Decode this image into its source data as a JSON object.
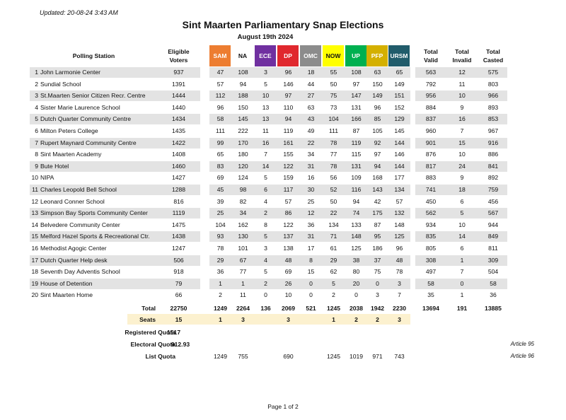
{
  "updated": "Updated: 20-08-24 3:43 AM",
  "title": "Sint Maarten Parliamentary Snap Elections",
  "subtitle": "August 19th 2024",
  "headers": {
    "station": "Polling Station",
    "eligible_line1": "Eligible",
    "eligible_line2": "Voters",
    "total_valid_line1": "Total",
    "total_valid_line2": "Valid",
    "total_invalid_line1": "Total",
    "total_invalid_line2": "Invalid",
    "total_casted_line1": "Total",
    "total_casted_line2": "Casted"
  },
  "parties": [
    {
      "name": "SAM",
      "color": "#ed7d31",
      "text": "#ffffff"
    },
    {
      "name": "NA",
      "color": "#ffffff",
      "text": "#111111"
    },
    {
      "name": "ECE",
      "color": "#7030a0",
      "text": "#ffffff"
    },
    {
      "name": "DP",
      "color": "#e0282e",
      "text": "#ffffff"
    },
    {
      "name": "OMC",
      "color": "#8c8c8c",
      "text": "#ffffff"
    },
    {
      "name": "NOW",
      "color": "#ffff00",
      "text": "#111111"
    },
    {
      "name": "UP",
      "color": "#00b050",
      "text": "#ffffff"
    },
    {
      "name": "PFP",
      "color": "#d4b000",
      "text": "#ffffff"
    },
    {
      "name": "URSM",
      "color": "#215c6b",
      "text": "#ffffff"
    }
  ],
  "rows": [
    {
      "n": "1",
      "station": "John Larmonie Center",
      "eligible": "937",
      "votes": [
        "47",
        "108",
        "3",
        "96",
        "18",
        "55",
        "108",
        "63",
        "65"
      ],
      "valid": "563",
      "invalid": "12",
      "casted": "575"
    },
    {
      "n": "2",
      "station": "Sundial School",
      "eligible": "1391",
      "votes": [
        "57",
        "94",
        "5",
        "146",
        "44",
        "50",
        "97",
        "150",
        "149"
      ],
      "valid": "792",
      "invalid": "11",
      "casted": "803"
    },
    {
      "n": "3",
      "station": "St.Maarten Senior Citizen Recr. Centre",
      "eligible": "1444",
      "votes": [
        "112",
        "188",
        "10",
        "97",
        "27",
        "75",
        "147",
        "149",
        "151"
      ],
      "valid": "956",
      "invalid": "10",
      "casted": "966"
    },
    {
      "n": "4",
      "station": "Sister Marie Laurence School",
      "eligible": "1440",
      "votes": [
        "96",
        "150",
        "13",
        "110",
        "63",
        "73",
        "131",
        "96",
        "152"
      ],
      "valid": "884",
      "invalid": "9",
      "casted": "893"
    },
    {
      "n": "5",
      "station": "Dutch Quarter Community Centre",
      "eligible": "1434",
      "votes": [
        "58",
        "145",
        "13",
        "94",
        "43",
        "104",
        "166",
        "85",
        "129"
      ],
      "valid": "837",
      "invalid": "16",
      "casted": "853"
    },
    {
      "n": "6",
      "station": "Milton Peters College",
      "eligible": "1435",
      "votes": [
        "111",
        "222",
        "11",
        "119",
        "49",
        "111",
        "87",
        "105",
        "145"
      ],
      "valid": "960",
      "invalid": "7",
      "casted": "967"
    },
    {
      "n": "7",
      "station": "Rupert Maynard Community Centre",
      "eligible": "1422",
      "votes": [
        "99",
        "170",
        "16",
        "161",
        "22",
        "78",
        "119",
        "92",
        "144"
      ],
      "valid": "901",
      "invalid": "15",
      "casted": "916"
    },
    {
      "n": "8",
      "station": "Sint Maarten Academy",
      "eligible": "1408",
      "votes": [
        "65",
        "180",
        "7",
        "155",
        "34",
        "77",
        "115",
        "97",
        "146"
      ],
      "valid": "876",
      "invalid": "10",
      "casted": "886"
    },
    {
      "n": "9",
      "station": "Bute Hotel",
      "eligible": "1460",
      "votes": [
        "83",
        "120",
        "14",
        "122",
        "31",
        "78",
        "131",
        "94",
        "144"
      ],
      "valid": "817",
      "invalid": "24",
      "casted": "841"
    },
    {
      "n": "10",
      "station": "NIPA",
      "eligible": "1427",
      "votes": [
        "69",
        "124",
        "5",
        "159",
        "16",
        "56",
        "109",
        "168",
        "177"
      ],
      "valid": "883",
      "invalid": "9",
      "casted": "892"
    },
    {
      "n": "11",
      "station": "Charles Leopold Bell School",
      "eligible": "1288",
      "votes": [
        "45",
        "98",
        "6",
        "117",
        "30",
        "52",
        "116",
        "143",
        "134"
      ],
      "valid": "741",
      "invalid": "18",
      "casted": "759"
    },
    {
      "n": "12",
      "station": "Leonard Conner School",
      "eligible": "816",
      "votes": [
        "39",
        "82",
        "4",
        "57",
        "25",
        "50",
        "94",
        "42",
        "57"
      ],
      "valid": "450",
      "invalid": "6",
      "casted": "456"
    },
    {
      "n": "13",
      "station": "Simpson Bay Sports Community Center",
      "eligible": "1119",
      "votes": [
        "25",
        "34",
        "2",
        "86",
        "12",
        "22",
        "74",
        "175",
        "132"
      ],
      "valid": "562",
      "invalid": "5",
      "casted": "567"
    },
    {
      "n": "14",
      "station": "Belvedere Community Center",
      "eligible": "1475",
      "votes": [
        "104",
        "162",
        "8",
        "122",
        "36",
        "134",
        "133",
        "87",
        "148"
      ],
      "valid": "934",
      "invalid": "10",
      "casted": "944"
    },
    {
      "n": "15",
      "station": "Melford Hazel Sports & Recreational Ctr.",
      "eligible": "1438",
      "votes": [
        "93",
        "130",
        "5",
        "137",
        "31",
        "71",
        "148",
        "95",
        "125"
      ],
      "valid": "835",
      "invalid": "14",
      "casted": "849"
    },
    {
      "n": "16",
      "station": "Methodist Agogic Center",
      "eligible": "1247",
      "votes": [
        "78",
        "101",
        "3",
        "138",
        "17",
        "61",
        "125",
        "186",
        "96"
      ],
      "valid": "805",
      "invalid": "6",
      "casted": "811"
    },
    {
      "n": "17",
      "station": "Dutch Quarter Help desk",
      "eligible": "506",
      "votes": [
        "29",
        "67",
        "4",
        "48",
        "8",
        "29",
        "38",
        "37",
        "48"
      ],
      "valid": "308",
      "invalid": "1",
      "casted": "309"
    },
    {
      "n": "18",
      "station": "Seventh Day Adventis School",
      "eligible": "918",
      "votes": [
        "36",
        "77",
        "5",
        "69",
        "15",
        "62",
        "80",
        "75",
        "78"
      ],
      "valid": "497",
      "invalid": "7",
      "casted": "504"
    },
    {
      "n": "19",
      "station": "House of Detention",
      "eligible": "79",
      "votes": [
        "1",
        "1",
        "2",
        "26",
        "0",
        "5",
        "20",
        "0",
        "3"
      ],
      "valid": "58",
      "invalid": "0",
      "casted": "58"
    },
    {
      "n": "20",
      "station": "Sint Maarten Home",
      "eligible": "66",
      "votes": [
        "2",
        "11",
        "0",
        "10",
        "0",
        "2",
        "0",
        "3",
        "7"
      ],
      "valid": "35",
      "invalid": "1",
      "casted": "36"
    }
  ],
  "total": {
    "label": "Total",
    "eligible": "22750",
    "votes": [
      "1249",
      "2264",
      "136",
      "2069",
      "521",
      "1245",
      "2038",
      "1942",
      "2230"
    ],
    "valid": "13694",
    "invalid": "191",
    "casted": "13885"
  },
  "seats": {
    "label": "Seats",
    "total": "15",
    "values": [
      "1",
      "3",
      "",
      "3",
      "",
      "1",
      "2",
      "2",
      "3"
    ]
  },
  "registered_quota": {
    "label": "Registered Quota",
    "value": "1517"
  },
  "electoral_quota": {
    "label": "Electoral Quota",
    "value": "912.93",
    "article": "Article 95"
  },
  "list_quota": {
    "label": "List Quota",
    "values": [
      "1249",
      "755",
      "",
      "690",
      "",
      "1245",
      "1019",
      "971",
      "743"
    ],
    "article": "Article 96"
  },
  "footer": "Page 1 of 2"
}
